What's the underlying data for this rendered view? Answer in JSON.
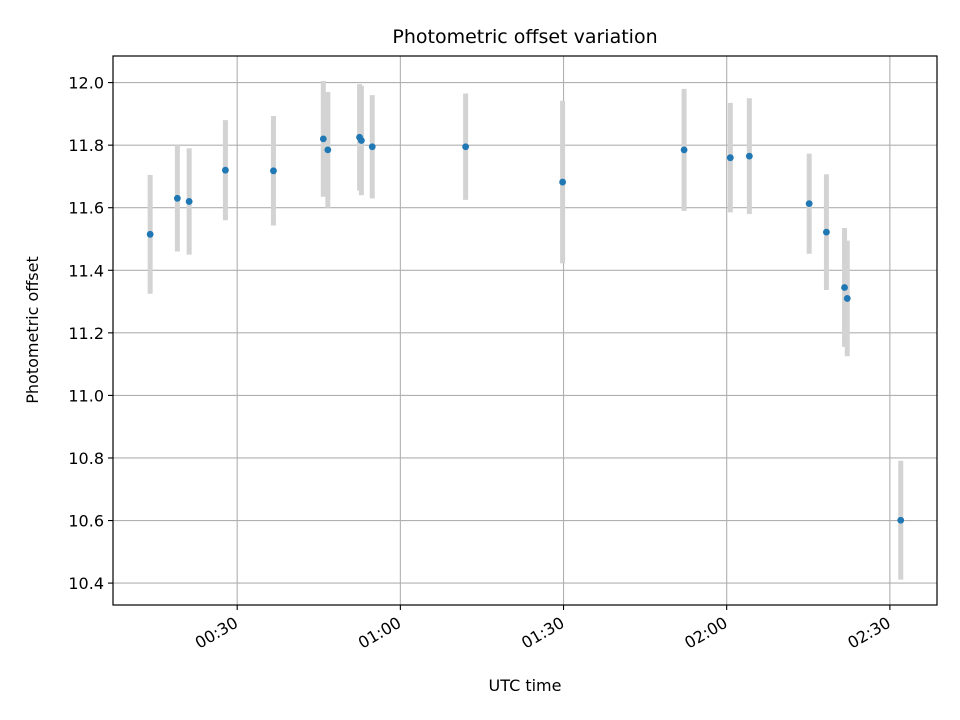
{
  "chart_data": {
    "type": "scatter",
    "title": "Photometric offset variation",
    "xlabel": "UTC time",
    "ylabel": "Photometric offset",
    "grid": true,
    "colors": {
      "point": "#1f77b4",
      "errorbar": "#d3d3d3",
      "grid": "#b0b0b0",
      "axis": "#000000"
    },
    "xlim": [
      "00:07:10",
      "02:38:40"
    ],
    "ylim": [
      10.33,
      12.085
    ],
    "xticks": [
      "00:30",
      "01:00",
      "01:30",
      "02:00",
      "02:30"
    ],
    "yticks": [
      "10.4",
      "10.6",
      "10.8",
      "11.0",
      "11.2",
      "11.4",
      "11.6",
      "11.8",
      "12.0"
    ],
    "points": [
      {
        "x": "00:14:00",
        "y": 11.515,
        "err": 0.19
      },
      {
        "x": "00:19:00",
        "y": 11.63,
        "err": 0.17
      },
      {
        "x": "00:21:10",
        "y": 11.62,
        "err": 0.17
      },
      {
        "x": "00:27:50",
        "y": 11.72,
        "err": 0.16
      },
      {
        "x": "00:36:40",
        "y": 11.718,
        "err": 0.175
      },
      {
        "x": "00:45:50",
        "y": 11.82,
        "err": 0.185
      },
      {
        "x": "00:46:40",
        "y": 11.785,
        "err": 0.185
      },
      {
        "x": "00:52:30",
        "y": 11.825,
        "err": 0.17
      },
      {
        "x": "00:52:50",
        "y": 11.815,
        "err": 0.175
      },
      {
        "x": "00:54:50",
        "y": 11.795,
        "err": 0.165
      },
      {
        "x": "01:12:00",
        "y": 11.795,
        "err": 0.17
      },
      {
        "x": "01:29:50",
        "y": 11.682,
        "err": 0.26
      },
      {
        "x": "01:52:10",
        "y": 11.785,
        "err": 0.195
      },
      {
        "x": "02:00:40",
        "y": 11.76,
        "err": 0.175
      },
      {
        "x": "02:04:10",
        "y": 11.765,
        "err": 0.185
      },
      {
        "x": "02:15:10",
        "y": 11.613,
        "err": 0.16
      },
      {
        "x": "02:18:20",
        "y": 11.522,
        "err": 0.185
      },
      {
        "x": "02:21:40",
        "y": 11.345,
        "err": 0.19
      },
      {
        "x": "02:22:10",
        "y": 11.31,
        "err": 0.185
      },
      {
        "x": "02:32:00",
        "y": 10.601,
        "err": 0.19
      }
    ]
  }
}
